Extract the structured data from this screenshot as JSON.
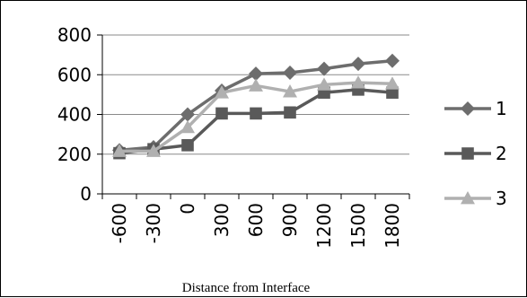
{
  "chart_data": {
    "type": "line",
    "title": "",
    "xlabel": "Distance from Interface",
    "ylabel": "",
    "categories": [
      "-600",
      "-300",
      "0",
      "300",
      "600",
      "900",
      "1200",
      "1500",
      "1800"
    ],
    "ylim": [
      0,
      800
    ],
    "yticks": [
      "0",
      "200",
      "400",
      "600",
      "800"
    ],
    "grid": "horizontal",
    "legend_position": "right",
    "series": [
      {
        "name": "1",
        "marker": "diamond",
        "color": "#6d6d6d",
        "values": [
          220,
          235,
          400,
          520,
          605,
          610,
          630,
          655,
          670
        ]
      },
      {
        "name": "2",
        "marker": "square",
        "color": "#595959",
        "values": [
          205,
          225,
          245,
          405,
          405,
          410,
          510,
          525,
          510
        ]
      },
      {
        "name": "3",
        "marker": "triangle",
        "color": "#b0b0b0",
        "values": [
          215,
          215,
          335,
          510,
          545,
          515,
          550,
          560,
          555
        ]
      }
    ]
  }
}
